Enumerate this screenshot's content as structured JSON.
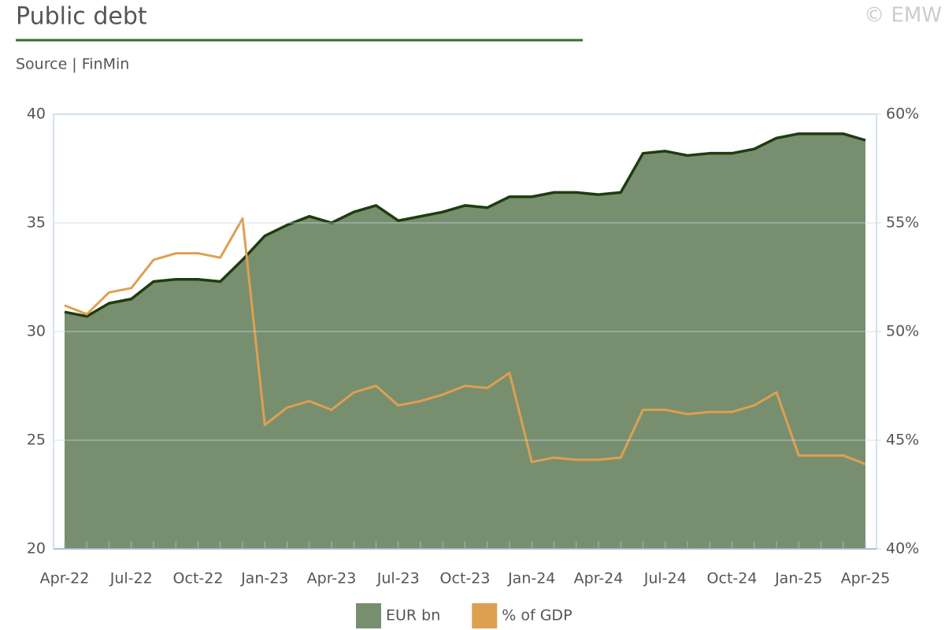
{
  "chart_data": {
    "type": "area",
    "title": "Public debt",
    "subtitle": "Source | FinMin",
    "copyright": "© EMW",
    "categories": [
      "Apr-22",
      null,
      null,
      "Jul-22",
      null,
      null,
      "Oct-22",
      null,
      null,
      "Jan-23",
      null,
      null,
      "Apr-23",
      null,
      null,
      "Jul-23",
      null,
      null,
      "Oct-23",
      null,
      null,
      "Jan-24",
      null,
      null,
      "Apr-24",
      null,
      null,
      "Jul-24",
      null,
      null,
      "Oct-24",
      null,
      null,
      "Jan-25",
      null,
      null,
      "Apr-25"
    ],
    "series": [
      {
        "name": "EUR bn",
        "type": "area",
        "color": "#778f6f",
        "line_color": "#1e3d0f",
        "values": [
          30.9,
          30.7,
          31.3,
          31.5,
          32.3,
          32.4,
          32.4,
          32.3,
          33.3,
          34.4,
          34.9,
          35.3,
          35.0,
          35.5,
          35.8,
          35.1,
          35.3,
          35.5,
          35.8,
          35.7,
          36.2,
          36.2,
          36.4,
          36.4,
          36.3,
          36.4,
          38.2,
          38.3,
          38.1,
          38.2,
          38.2,
          38.4,
          38.9,
          39.1,
          39.1,
          39.1,
          38.8
        ]
      },
      {
        "name": "% of GDP",
        "type": "line",
        "axis": "y2",
        "color": "#dda050",
        "values": [
          51.2,
          50.8,
          51.8,
          52.0,
          53.3,
          53.6,
          53.6,
          53.4,
          55.2,
          45.7,
          46.5,
          46.8,
          46.4,
          47.2,
          47.5,
          46.6,
          46.8,
          47.1,
          47.5,
          47.4,
          48.1,
          44.0,
          44.2,
          44.1,
          44.1,
          44.2,
          46.4,
          46.4,
          46.2,
          46.3,
          46.3,
          46.6,
          47.2,
          44.3,
          44.3,
          44.3,
          43.9
        ]
      }
    ],
    "ylim": [
      20,
      40
    ],
    "yticks": [
      20,
      25,
      30,
      35,
      40
    ],
    "y2lim": [
      40,
      60
    ],
    "y2ticks": [
      {
        "value": 40,
        "label": "40%"
      },
      {
        "value": 45,
        "label": "45%"
      },
      {
        "value": 50,
        "label": "50%"
      },
      {
        "value": 55,
        "label": "55%"
      },
      {
        "value": 60,
        "label": "60%"
      }
    ],
    "grid": true,
    "legend": "bottom"
  }
}
